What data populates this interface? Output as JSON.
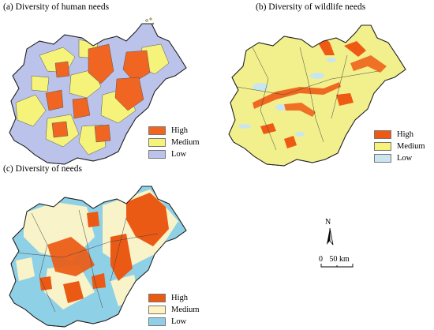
{
  "panels": [
    {
      "id": "human",
      "title": "(a) Diversity of human needs",
      "colors": {
        "high": "#f06522",
        "medium": "#f5f37a",
        "low": "#bcc3ea"
      },
      "legend": [
        {
          "label": "High",
          "color": "#f06522"
        },
        {
          "label": "Medium",
          "color": "#f5f37a"
        },
        {
          "label": "Low",
          "color": "#bcc3ea"
        }
      ]
    },
    {
      "id": "wildlife",
      "title": "(b) Diversity of wildlife needs",
      "colors": {
        "high": "#ee5a14",
        "medium": "#f2f08c",
        "low": "#c9e6f0"
      },
      "legend": [
        {
          "label": "High",
          "color": "#ee5a14"
        },
        {
          "label": "Medium",
          "color": "#f5f37a"
        },
        {
          "label": "Low",
          "color": "#c9e6f0"
        }
      ]
    },
    {
      "id": "combined",
      "title": "(c) Diversity of needs",
      "colors": {
        "high": "#ea5a14",
        "medium": "#f8f3c8",
        "low": "#8ed0e6"
      },
      "legend": [
        {
          "label": "High",
          "color": "#ea5a14"
        },
        {
          "label": "Medium",
          "color": "#fdf4c2"
        },
        {
          "label": "Low",
          "color": "#8fd0e6"
        }
      ]
    }
  ],
  "north_arrow": {
    "label": "N"
  },
  "scale_bar": {
    "zero": "0",
    "distance": "50 km"
  }
}
